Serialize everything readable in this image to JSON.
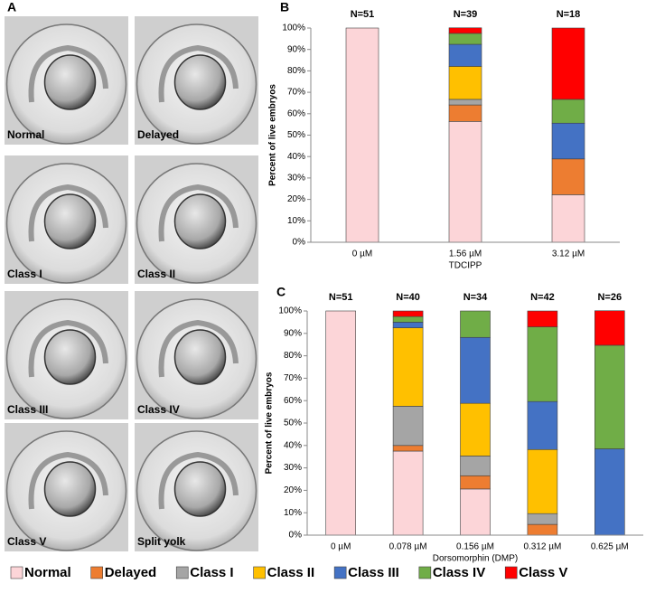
{
  "panel_a": {
    "label": "A",
    "captions": [
      "Normal",
      "Delayed",
      "Class I",
      "Class II",
      "Class III",
      "Class IV",
      "Class V",
      "Split yolk"
    ]
  },
  "chart_data": [
    {
      "type": "bar",
      "stacked": true,
      "panel_label": "B",
      "categories": [
        "0 µM",
        "1.56 µM",
        "3.12 µM"
      ],
      "annotations": [
        "N=51",
        "N=39",
        "N=18"
      ],
      "xlabel": "TDCIPP",
      "ylabel": "Percent of live embryos",
      "ylim": [
        0,
        100
      ],
      "yticks": [
        {
          "value": 0,
          "label": "0%"
        },
        {
          "value": 10,
          "label": "10%"
        },
        {
          "value": 20,
          "label": "20%"
        },
        {
          "value": 30,
          "label": "30%"
        },
        {
          "value": 40,
          "label": "40%"
        },
        {
          "value": 50,
          "label": "50%"
        },
        {
          "value": 60,
          "label": "60%"
        },
        {
          "value": 70,
          "label": "70%"
        },
        {
          "value": 80,
          "label": "80%"
        },
        {
          "value": 90,
          "label": "90%"
        },
        {
          "value": 100,
          "label": "100%"
        }
      ],
      "series": [
        {
          "values": [
            100,
            56.4,
            22.2
          ]
        },
        {
          "values": [
            0,
            7.7,
            16.7
          ]
        },
        {
          "values": [
            0,
            2.6,
            0
          ]
        },
        {
          "values": [
            0,
            15.4,
            0
          ]
        },
        {
          "values": [
            0,
            10.3,
            16.7
          ]
        },
        {
          "values": [
            0,
            5.1,
            11.1
          ]
        },
        {
          "values": [
            0,
            2.6,
            33.3
          ]
        }
      ]
    },
    {
      "type": "bar",
      "stacked": true,
      "panel_label": "C",
      "categories": [
        "0 µM",
        "0.078 µM",
        "0.156 µM",
        "0.312 µM",
        "0.625 µM"
      ],
      "annotations": [
        "N=51",
        "N=40",
        "N=34",
        "N=42",
        "N=26"
      ],
      "xlabel": "Dorsomorphin (DMP)",
      "ylabel": "Percent of live embryos",
      "ylim": [
        0,
        100
      ],
      "yticks": [
        {
          "value": 0,
          "label": "0%"
        },
        {
          "value": 10,
          "label": "10%"
        },
        {
          "value": 20,
          "label": "20%"
        },
        {
          "value": 30,
          "label": "30%"
        },
        {
          "value": 40,
          "label": "40%"
        },
        {
          "value": 50,
          "label": "50%"
        },
        {
          "value": 60,
          "label": "60%"
        },
        {
          "value": 70,
          "label": "70%"
        },
        {
          "value": 80,
          "label": "80%"
        },
        {
          "value": 90,
          "label": "90%"
        },
        {
          "value": 100,
          "label": "100%"
        }
      ],
      "series": [
        {
          "name": "Normal",
          "color": "#fcd5d8",
          "values": [
            100,
            37.5,
            20.6,
            0,
            0
          ]
        },
        {
          "name": "Delayed",
          "color": "#ed7d31",
          "values": [
            0,
            2.5,
            5.9,
            4.8,
            0
          ]
        },
        {
          "name": "Class I",
          "color": "#a5a5a5",
          "values": [
            0,
            17.5,
            8.8,
            4.8,
            0
          ]
        },
        {
          "name": "Class II",
          "color": "#ffc000",
          "values": [
            0,
            35,
            23.5,
            28.6,
            0
          ]
        },
        {
          "name": "Class III",
          "color": "#4472c4",
          "values": [
            0,
            2.5,
            29.4,
            21.4,
            38.5
          ]
        },
        {
          "name": "Class IV",
          "color": "#70ad47",
          "values": [
            0,
            2.5,
            11.8,
            33.3,
            46.2
          ]
        },
        {
          "name": "Class V",
          "color": "#ff0000",
          "values": [
            0,
            2.5,
            0,
            7.1,
            15.4
          ]
        }
      ]
    }
  ]
}
